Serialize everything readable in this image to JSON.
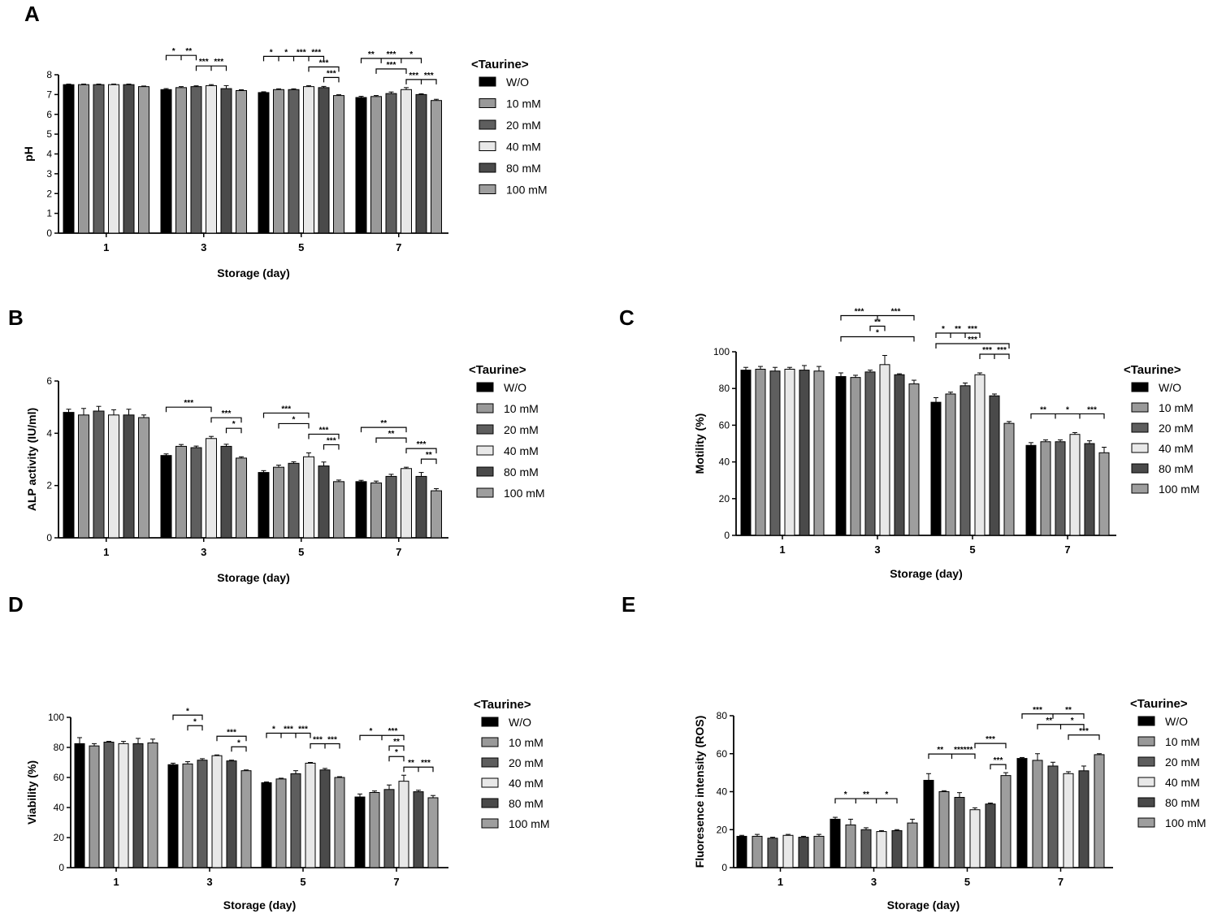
{
  "legend_colors": [
    "#000000",
    "#999999",
    "#5e5e5e",
    "#e8e8e8",
    "#4a4a4a",
    "#9e9e9e"
  ],
  "chart_data": [
    {
      "type": "bar",
      "panel": "A",
      "categories": [
        "1",
        "3",
        "5",
        "7"
      ],
      "xlabel": "Storage (day)",
      "ylabel": "pH",
      "ylim": [
        0,
        8
      ],
      "yticks": [
        0,
        1,
        2,
        3,
        4,
        5,
        6,
        7,
        8
      ],
      "legend_title": "<Taurine>",
      "legend_position": "right",
      "series": [
        {
          "name": "W/O",
          "values": [
            7.5,
            7.25,
            7.1,
            6.85
          ],
          "errors": [
            0.03,
            0.05,
            0.04,
            0.06
          ]
        },
        {
          "name": "10 mM",
          "values": [
            7.5,
            7.35,
            7.25,
            6.9
          ],
          "errors": [
            0.03,
            0.05,
            0.04,
            0.05
          ]
        },
        {
          "name": "20 mM",
          "values": [
            7.5,
            7.4,
            7.25,
            7.05
          ],
          "errors": [
            0.03,
            0.04,
            0.04,
            0.08
          ]
        },
        {
          "name": "40 mM",
          "values": [
            7.5,
            7.45,
            7.4,
            7.25
          ],
          "errors": [
            0.03,
            0.05,
            0.05,
            0.1
          ]
        },
        {
          "name": "80 mM",
          "values": [
            7.5,
            7.3,
            7.35,
            7.0
          ],
          "errors": [
            0.03,
            0.15,
            0.06,
            0.04
          ]
        },
        {
          "name": "100 mM",
          "values": [
            7.4,
            7.2,
            6.95,
            6.7
          ],
          "errors": [
            0.03,
            0.04,
            0.04,
            0.06
          ]
        }
      ],
      "annotations": [
        {
          "group": 1,
          "from": 0,
          "to": 2,
          "top": 1,
          "labels": [
            "*",
            "**"
          ],
          "level": 2
        },
        {
          "group": 1,
          "from": 2,
          "to": 4,
          "top": 1,
          "labels": [
            "***",
            "***"
          ],
          "level": 1
        },
        {
          "group": 2,
          "from": 0,
          "to": 4,
          "top": 1,
          "labels": [
            "*",
            "*",
            "***",
            "***"
          ],
          "level": 2
        },
        {
          "group": 2,
          "from": 3,
          "to": 5,
          "top": 1,
          "labels": [
            "***"
          ],
          "level": 1
        },
        {
          "group": 2,
          "from": 4,
          "to": 5,
          "top": 1,
          "labels": [
            "***"
          ],
          "level": 0
        },
        {
          "group": 3,
          "from": 0,
          "to": 4,
          "top": 1,
          "labels": [
            "**",
            "***",
            "*"
          ],
          "level": 2
        },
        {
          "group": 3,
          "from": 1,
          "to": 3,
          "top": 1,
          "labels": [
            "***"
          ],
          "level": 1
        },
        {
          "group": 3,
          "from": 3,
          "to": 5,
          "top": 1,
          "labels": [
            "***",
            "***"
          ],
          "level": 0
        }
      ]
    },
    {
      "type": "bar",
      "panel": "B",
      "categories": [
        "1",
        "3",
        "5",
        "7"
      ],
      "xlabel": "Storage (day)",
      "ylabel": "ALP activity (IU/ml)",
      "ylim": [
        0,
        6
      ],
      "yticks": [
        0,
        2,
        4,
        6
      ],
      "legend_title": "<Taurine>",
      "legend_position": "right",
      "series": [
        {
          "name": "W/O",
          "values": [
            4.8,
            3.15,
            2.5,
            2.15
          ],
          "errors": [
            0.12,
            0.06,
            0.07,
            0.05
          ]
        },
        {
          "name": "10 mM",
          "values": [
            4.7,
            3.5,
            2.7,
            2.1
          ],
          "errors": [
            0.25,
            0.07,
            0.08,
            0.07
          ]
        },
        {
          "name": "20 mM",
          "values": [
            4.85,
            3.45,
            2.85,
            2.35
          ],
          "errors": [
            0.18,
            0.06,
            0.06,
            0.08
          ]
        },
        {
          "name": "40 mM",
          "values": [
            4.7,
            3.8,
            3.1,
            2.65
          ],
          "errors": [
            0.2,
            0.08,
            0.15,
            0.05
          ]
        },
        {
          "name": "80 mM",
          "values": [
            4.7,
            3.5,
            2.75,
            2.35
          ],
          "errors": [
            0.22,
            0.08,
            0.15,
            0.15
          ]
        },
        {
          "name": "100 mM",
          "values": [
            4.6,
            3.05,
            2.15,
            1.8
          ],
          "errors": [
            0.1,
            0.05,
            0.06,
            0.08
          ]
        }
      ],
      "annotations": [
        {
          "group": 1,
          "from": 0,
          "to": 3,
          "labels": [
            "***"
          ],
          "level": 2
        },
        {
          "group": 1,
          "from": 3,
          "to": 5,
          "labels": [
            "***"
          ],
          "level": 1
        },
        {
          "group": 1,
          "from": 4,
          "to": 5,
          "labels": [
            "*"
          ],
          "level": 0
        },
        {
          "group": 2,
          "from": 0,
          "to": 3,
          "labels": [
            "***"
          ],
          "level": 3
        },
        {
          "group": 2,
          "from": 1,
          "to": 3,
          "labels": [
            "*"
          ],
          "level": 2
        },
        {
          "group": 2,
          "from": 3,
          "to": 5,
          "labels": [
            "***"
          ],
          "level": 1
        },
        {
          "group": 2,
          "from": 4,
          "to": 5,
          "labels": [
            "***"
          ],
          "level": 0
        },
        {
          "group": 3,
          "from": 0,
          "to": 3,
          "labels": [
            "**"
          ],
          "level": 3
        },
        {
          "group": 3,
          "from": 1,
          "to": 3,
          "labels": [
            "**"
          ],
          "level": 2
        },
        {
          "group": 3,
          "from": 3,
          "to": 5,
          "labels": [
            "***"
          ],
          "level": 1
        },
        {
          "group": 3,
          "from": 4,
          "to": 5,
          "labels": [
            "**"
          ],
          "level": 0
        }
      ]
    },
    {
      "type": "bar",
      "panel": "C",
      "categories": [
        "1",
        "3",
        "5",
        "7"
      ],
      "xlabel": "Storage (day)",
      "ylabel": "Motility (%)",
      "ylim": [
        0,
        100
      ],
      "yticks": [
        0,
        20,
        40,
        60,
        80,
        100
      ],
      "legend_title": "<Taurine>",
      "legend_position": "right",
      "series": [
        {
          "name": "W/O",
          "values": [
            90,
            86.5,
            72.5,
            49
          ],
          "errors": [
            1.5,
            2,
            2.5,
            1.5
          ]
        },
        {
          "name": "10 mM",
          "values": [
            90.5,
            86,
            77,
            51
          ],
          "errors": [
            1.5,
            1.2,
            1,
            1
          ]
        },
        {
          "name": "20 mM",
          "values": [
            89.5,
            89,
            81.5,
            51
          ],
          "errors": [
            2,
            1,
            1.5,
            1
          ]
        },
        {
          "name": "40 mM",
          "values": [
            90.5,
            93,
            87.5,
            55
          ],
          "errors": [
            1,
            5,
            1,
            1
          ]
        },
        {
          "name": "80 mM",
          "values": [
            90,
            87.5,
            76,
            50
          ],
          "errors": [
            2.5,
            0.5,
            1,
            1.5
          ]
        },
        {
          "name": "100 mM",
          "values": [
            89.5,
            82.5,
            61,
            45
          ],
          "errors": [
            2.5,
            2,
            1,
            3
          ]
        }
      ],
      "annotations": [
        {
          "group": 1,
          "from": 0,
          "to": 5,
          "labels": [
            "***",
            "***"
          ],
          "level": 3
        },
        {
          "group": 1,
          "from": 2,
          "to": 3,
          "labels": [
            "**"
          ],
          "level": 2
        },
        {
          "group": 1,
          "from": 0,
          "to": 5,
          "labels": [
            "*"
          ],
          "level": 1
        },
        {
          "group": 2,
          "from": 0,
          "to": 3,
          "labels": [
            "*",
            "**",
            "***"
          ],
          "level": 3
        },
        {
          "group": 2,
          "from": 0,
          "to": 5,
          "labels": [
            "***"
          ],
          "level": 2
        },
        {
          "group": 2,
          "from": 3,
          "to": 5,
          "labels": [
            "***",
            "***"
          ],
          "level": 1
        },
        {
          "group": 3,
          "from": 0,
          "to": 5,
          "labels": [
            "**",
            "*",
            "***"
          ],
          "level": 1
        }
      ]
    },
    {
      "type": "bar",
      "panel": "D",
      "categories": [
        "1",
        "3",
        "5",
        "7"
      ],
      "xlabel": "Storage (day)",
      "ylabel": "Viability (%)",
      "ylim": [
        0,
        100
      ],
      "yticks": [
        0,
        20,
        40,
        60,
        80,
        100
      ],
      "legend_title": "<Taurine>",
      "legend_position": "right",
      "series": [
        {
          "name": "W/O",
          "values": [
            82.5,
            68.5,
            56.5,
            47
          ],
          "errors": [
            4,
            1,
            0.5,
            2
          ]
        },
        {
          "name": "10 mM",
          "values": [
            81,
            69,
            59,
            50
          ],
          "errors": [
            1.5,
            1.5,
            0.5,
            1
          ]
        },
        {
          "name": "20 mM",
          "values": [
            83.5,
            71.5,
            62.5,
            52
          ],
          "errors": [
            0.5,
            1,
            2,
            3
          ]
        },
        {
          "name": "40 mM",
          "values": [
            82.5,
            74.5,
            69.5,
            57.5
          ],
          "errors": [
            1.5,
            0.5,
            0.5,
            4
          ]
        },
        {
          "name": "80 mM",
          "values": [
            82.5,
            71,
            65,
            50.5
          ],
          "errors": [
            3.5,
            0.5,
            1,
            1
          ]
        },
        {
          "name": "100 mM",
          "values": [
            83,
            64.5,
            60,
            46.5
          ],
          "errors": [
            2.5,
            0.5,
            0.5,
            1.5
          ]
        }
      ],
      "annotations": [
        {
          "group": 1,
          "from": 0,
          "to": 2,
          "labels": [
            "*"
          ],
          "level": 3
        },
        {
          "group": 1,
          "from": 1,
          "to": 2,
          "labels": [
            "*"
          ],
          "level": 2
        },
        {
          "group": 1,
          "from": 3,
          "to": 5,
          "labels": [
            "***"
          ],
          "level": 1
        },
        {
          "group": 1,
          "from": 4,
          "to": 5,
          "labels": [
            "*"
          ],
          "level": 0
        },
        {
          "group": 2,
          "from": 0,
          "to": 3,
          "labels": [
            "*",
            "***",
            "***"
          ],
          "level": 2
        },
        {
          "group": 2,
          "from": 3,
          "to": 5,
          "labels": [
            "***",
            "***"
          ],
          "level": 1
        },
        {
          "group": 3,
          "from": 0,
          "to": 3,
          "labels": [
            "*",
            "***"
          ],
          "level": 3
        },
        {
          "group": 3,
          "from": 2,
          "to": 3,
          "labels": [
            "**"
          ],
          "level": 2
        },
        {
          "group": 3,
          "from": 2,
          "to": 3,
          "labels": [
            "*"
          ],
          "level": 1
        },
        {
          "group": 3,
          "from": 3,
          "to": 5,
          "labels": [
            "**",
            "***"
          ],
          "level": 0
        }
      ]
    },
    {
      "type": "bar",
      "panel": "E",
      "categories": [
        "1",
        "3",
        "5",
        "7"
      ],
      "xlabel": "Storage (day)",
      "ylabel": "Fluoresence intensity (ROS)",
      "ylim": [
        0,
        80
      ],
      "yticks": [
        0,
        20,
        40,
        60,
        80
      ],
      "legend_title": "<Taurine>",
      "legend_position": "right",
      "series": [
        {
          "name": "W/O",
          "values": [
            16.5,
            25.5,
            46,
            57.5
          ],
          "errors": [
            0.5,
            1,
            3.5,
            0.5
          ]
        },
        {
          "name": "10 mM",
          "values": [
            16.5,
            22.5,
            40,
            56.5
          ],
          "errors": [
            1,
            3,
            0.5,
            3.5
          ]
        },
        {
          "name": "20 mM",
          "values": [
            15.5,
            20,
            37,
            53.5
          ],
          "errors": [
            0.5,
            1,
            2.5,
            2
          ]
        },
        {
          "name": "40 mM",
          "values": [
            17,
            19,
            30.5,
            49.5
          ],
          "errors": [
            0.5,
            0.5,
            1,
            1
          ]
        },
        {
          "name": "80 mM",
          "values": [
            16,
            19.5,
            33.5,
            51
          ],
          "errors": [
            0.5,
            0.5,
            0.5,
            2.5
          ]
        },
        {
          "name": "100 mM",
          "values": [
            16.5,
            23.5,
            48.5,
            59.5
          ],
          "errors": [
            1,
            2,
            1.5,
            0.5
          ]
        }
      ],
      "annotations": [
        {
          "group": 1,
          "from": 0,
          "to": 4,
          "labels": [
            "*",
            "**",
            "*"
          ],
          "level": 1
        },
        {
          "group": 2,
          "from": 0,
          "to": 3,
          "labels": [
            "**",
            "******"
          ],
          "level": 1
        },
        {
          "group": 2,
          "from": 3,
          "to": 5,
          "labels": [
            "***"
          ],
          "level": 2
        },
        {
          "group": 2,
          "from": 4,
          "to": 5,
          "labels": [
            "***"
          ],
          "level": 0
        },
        {
          "group": 3,
          "from": 0,
          "to": 4,
          "labels": [
            "***",
            "**"
          ],
          "level": 3
        },
        {
          "group": 3,
          "from": 1,
          "to": 4,
          "labels": [
            "**",
            "*"
          ],
          "level": 2
        },
        {
          "group": 3,
          "from": 3,
          "to": 5,
          "labels": [
            "***"
          ],
          "level": 1
        }
      ]
    }
  ]
}
